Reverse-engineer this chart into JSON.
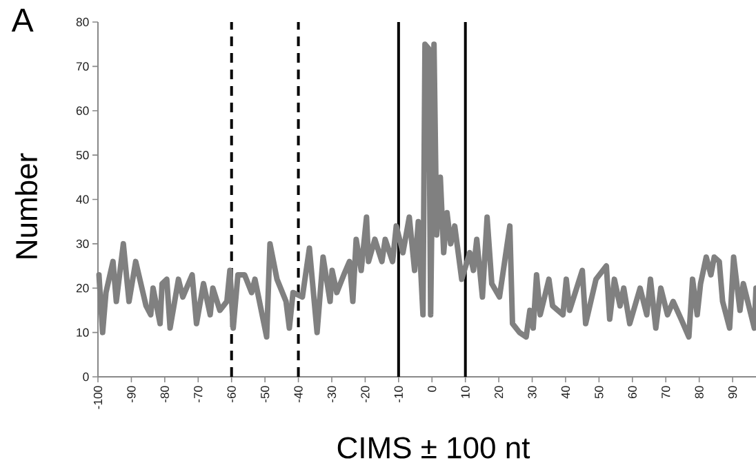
{
  "chart_data": {
    "type": "line",
    "xlabel": "CIMS ± 100 nt",
    "ylabel": "Number",
    "annotations": [
      "A"
    ],
    "x": [
      -99.7,
      -98.6,
      -97.6,
      -95.5,
      -94.5,
      -92.4,
      -90.7,
      -88.7,
      -85.6,
      -84.2,
      -83.5,
      -81.4,
      -80.8,
      -79.4,
      -78.4,
      -75.9,
      -74.6,
      -71.8,
      -70.5,
      -68.4,
      -66.4,
      -65.6,
      -63.5,
      -61.4,
      -60.5,
      -59.5,
      -58.1,
      -56.1,
      -54,
      -53,
      -49.5,
      -48.5,
      -46.4,
      -43.7,
      -42.7,
      -41.6,
      -38.8,
      -36.7,
      -34.4,
      -32.6,
      -30.5,
      -29.9,
      -28.5,
      -26.4,
      -24.7,
      -23.7,
      -22.7,
      -21.2,
      -19.6,
      -19,
      -17.1,
      -15,
      -14,
      -11.8,
      -10.7,
      -8.7,
      -6.8,
      -5.2,
      -4.1,
      -2.7,
      -2.1,
      -1,
      -0.4,
      0.6,
      1.4,
      2.5,
      3.5,
      4.5,
      5.6,
      6.8,
      8.9,
      11.3,
      12.4,
      13.4,
      15.1,
      16.5,
      17.9,
      20.2,
      23.3,
      24.1,
      26.2,
      28.2,
      29.3,
      30.3,
      31.3,
      32.4,
      35,
      36.1,
      39.2,
      40.2,
      41.2,
      45,
      46,
      49.1,
      52.2,
      53.2,
      54.6,
      56.3,
      57.4,
      59.2,
      62.3,
      64.3,
      65.4,
      67,
      68.5,
      70.5,
      72.2,
      74.6,
      76.9,
      78,
      79.4,
      80.4,
      82.1,
      83.5,
      84.5,
      86,
      87,
      89.1,
      90.3,
      92.2,
      93.2,
      96.5,
      97
    ],
    "values": [
      23,
      10,
      19,
      26,
      17,
      30,
      17,
      26,
      16,
      14,
      20,
      12,
      21,
      22,
      11,
      22,
      18,
      23,
      12,
      21,
      14,
      20,
      15,
      17,
      24,
      11,
      23,
      23,
      19,
      22,
      9,
      30,
      22,
      17,
      11,
      19,
      18,
      29,
      10,
      27,
      17,
      24,
      19,
      23,
      26,
      17,
      31,
      24,
      36,
      26,
      31,
      26,
      31,
      26,
      34,
      28,
      36,
      24,
      35,
      14,
      75,
      74,
      14,
      75,
      32,
      45,
      28,
      37,
      30,
      34,
      22,
      28,
      24,
      31,
      18,
      36,
      21,
      18,
      34,
      12,
      10,
      9,
      15,
      11,
      23,
      14,
      22,
      16,
      14,
      22,
      15,
      24,
      12,
      22,
      25,
      13,
      22,
      16,
      20,
      12,
      20,
      14,
      22,
      11,
      20,
      14,
      17,
      13,
      9,
      22,
      14,
      21,
      27,
      23,
      27,
      26,
      17,
      11,
      27,
      15,
      21,
      11,
      20
    ],
    "color": "#808080",
    "marker": "none",
    "line_style": "solid",
    "xlim": [
      -100,
      97
    ],
    "ylim": [
      0,
      80
    ],
    "xticks": [
      -100,
      -90,
      -80,
      -70,
      -60,
      -50,
      -40,
      -30,
      -20,
      -10,
      0,
      10,
      20,
      30,
      40,
      50,
      60,
      70,
      80,
      90
    ],
    "yticks": [
      0,
      10,
      20,
      30,
      40,
      50,
      60,
      70,
      80
    ],
    "ref_lines": [
      {
        "axis": "x",
        "value": -60,
        "color": "#000000",
        "line_style": "dashed"
      },
      {
        "axis": "x",
        "value": -40,
        "color": "#000000",
        "line_style": "dashed"
      },
      {
        "axis": "x",
        "value": -10,
        "color": "#000000",
        "line_style": "solid"
      },
      {
        "axis": "x",
        "value": 10,
        "color": "#000000",
        "line_style": "solid"
      }
    ]
  }
}
